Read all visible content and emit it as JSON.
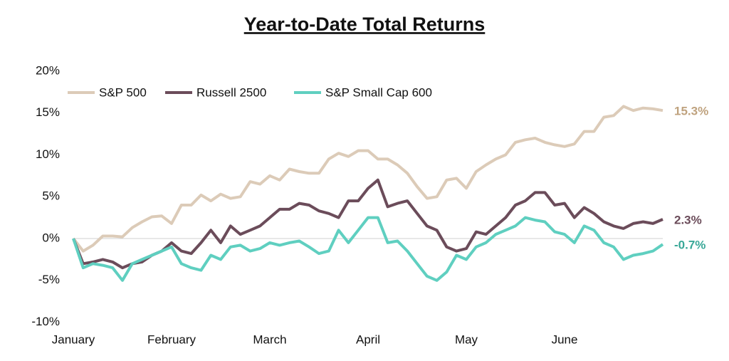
{
  "chart_data": {
    "type": "line",
    "title": "Year-to-Date Total Returns",
    "categories": [
      "January",
      null,
      null,
      null,
      null,
      null,
      null,
      null,
      null,
      null,
      "February",
      null,
      null,
      null,
      null,
      null,
      null,
      null,
      null,
      null,
      "March",
      null,
      null,
      null,
      null,
      null,
      null,
      null,
      null,
      null,
      "April",
      null,
      null,
      null,
      null,
      null,
      null,
      null,
      null,
      null,
      "May",
      null,
      null,
      null,
      null,
      null,
      null,
      null,
      null,
      null,
      "June",
      null,
      null,
      null,
      null,
      null,
      null,
      null,
      null,
      null,
      null
    ],
    "series": [
      {
        "name": "S&P 500",
        "color": "#dccbb8",
        "label_color": "#bfa27e",
        "values": [
          0,
          -1.5,
          -0.8,
          0.3,
          0.3,
          0.2,
          1.3,
          2,
          2.6,
          2.7,
          1.8,
          4,
          4,
          5.2,
          4.5,
          5.3,
          4.8,
          5,
          6.8,
          6.5,
          7.5,
          7,
          8.3,
          8,
          7.8,
          7.8,
          9.5,
          10.2,
          9.8,
          10.5,
          10.5,
          9.5,
          9.5,
          8.8,
          7.8,
          6.2,
          4.8,
          5,
          7,
          7.2,
          6,
          8,
          8.8,
          9.5,
          10,
          11.5,
          11.8,
          12,
          11.5,
          11.2,
          11,
          11.3,
          12.8,
          12.8,
          14.5,
          14.7,
          15.8,
          15.3,
          15.6,
          15.5,
          15.3
        ],
        "value_labels": [
          null,
          null,
          null,
          null,
          null,
          null,
          null,
          null,
          null,
          null,
          null,
          null,
          null,
          null,
          null,
          null,
          null,
          null,
          null,
          null,
          null,
          null,
          null,
          null,
          null,
          null,
          null,
          null,
          null,
          null,
          null,
          null,
          null,
          null,
          null,
          null,
          null,
          null,
          null,
          null,
          null,
          null,
          null,
          null,
          null,
          null,
          null,
          null,
          null,
          null,
          null,
          null,
          null,
          null,
          null,
          null,
          null,
          null,
          null,
          null,
          "15.3%"
        ]
      },
      {
        "name": "Russell 2500",
        "color": "#6b4c5a",
        "label_color": "#6b4c5a",
        "values": [
          0,
          -3,
          -2.8,
          -2.5,
          -2.8,
          -3.5,
          -3,
          -2.8,
          -2,
          -1.5,
          -0.5,
          -1.5,
          -1.8,
          -0.5,
          1,
          -0.5,
          1.5,
          0.5,
          1,
          1.5,
          2.5,
          3.5,
          3.5,
          4.2,
          4,
          3.3,
          3,
          2.5,
          4.5,
          4.5,
          6,
          7,
          3.8,
          4.2,
          4.5,
          3,
          1.5,
          1,
          -1,
          -1.5,
          -1.2,
          0.8,
          0.5,
          1.5,
          2.5,
          4,
          4.5,
          5.5,
          5.5,
          4,
          4.2,
          2.5,
          3.7,
          3,
          2,
          1.5,
          1.2,
          1.8,
          2,
          1.8,
          2.3
        ],
        "value_labels": [
          null,
          null,
          null,
          null,
          null,
          null,
          null,
          null,
          null,
          null,
          null,
          null,
          null,
          null,
          null,
          null,
          null,
          null,
          null,
          null,
          null,
          null,
          null,
          null,
          null,
          null,
          null,
          null,
          null,
          null,
          null,
          null,
          null,
          null,
          null,
          null,
          null,
          null,
          null,
          null,
          null,
          null,
          null,
          null,
          null,
          null,
          null,
          null,
          null,
          null,
          null,
          null,
          null,
          null,
          null,
          null,
          null,
          null,
          null,
          null,
          "2.3%"
        ]
      },
      {
        "name": "S&P Small Cap 600",
        "color": "#5fcfc0",
        "label_color": "#3aa898",
        "values": [
          0,
          -3.5,
          -3,
          -3.2,
          -3.5,
          -5,
          -3,
          -2.5,
          -2,
          -1.5,
          -1,
          -3,
          -3.5,
          -3.8,
          -2,
          -2.5,
          -1,
          -0.8,
          -1.5,
          -1.2,
          -0.5,
          -0.8,
          -0.5,
          -0.3,
          -1,
          -1.8,
          -1.5,
          1,
          -0.5,
          1,
          2.5,
          2.5,
          -0.5,
          -0.3,
          -1.5,
          -3,
          -4.5,
          -5,
          -4,
          -2,
          -2.5,
          -1,
          -0.5,
          0.5,
          1,
          1.5,
          2.5,
          2.2,
          2,
          0.8,
          0.5,
          -0.5,
          1.5,
          1,
          -0.5,
          -1,
          -2.5,
          -2,
          -1.8,
          -1.5,
          -0.7
        ],
        "value_labels": [
          null,
          null,
          null,
          null,
          null,
          null,
          null,
          null,
          null,
          null,
          null,
          null,
          null,
          null,
          null,
          null,
          null,
          null,
          null,
          null,
          null,
          null,
          null,
          null,
          null,
          null,
          null,
          null,
          null,
          null,
          null,
          null,
          null,
          null,
          null,
          null,
          null,
          null,
          null,
          null,
          null,
          null,
          null,
          null,
          null,
          null,
          null,
          null,
          null,
          null,
          null,
          null,
          null,
          null,
          null,
          null,
          null,
          null,
          null,
          null,
          "-0.7%"
        ]
      }
    ],
    "ylim": [
      -10,
      20
    ],
    "yticks": [
      {
        "value": 20,
        "label": "20%"
      },
      {
        "value": 15,
        "label": "15%"
      },
      {
        "value": 10,
        "label": "10%"
      },
      {
        "value": 5,
        "label": "5%"
      },
      {
        "value": 0,
        "label": "0%"
      },
      {
        "value": -5,
        "label": "-5%"
      },
      {
        "value": -10,
        "label": "-10%"
      }
    ],
    "zero_line": true,
    "legend": "top-left"
  }
}
